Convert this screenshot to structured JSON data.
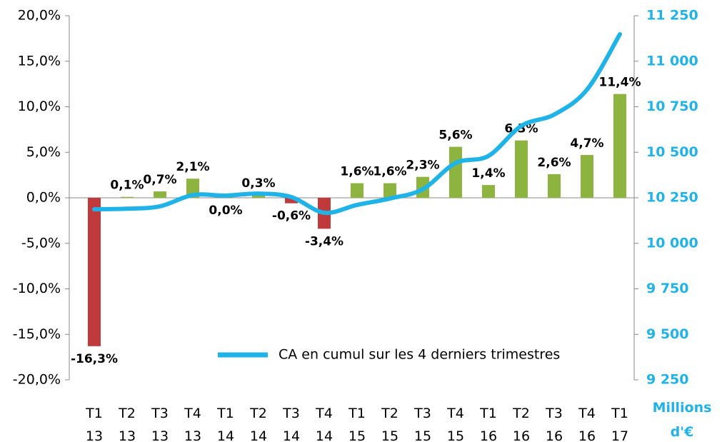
{
  "chart_data": {
    "type": "bar_line",
    "categories": [
      "T1 13",
      "T2 13",
      "T3 13",
      "T4 13",
      "T1 14",
      "T2 14",
      "T3 14",
      "T4 14",
      "T1 15",
      "T2 15",
      "T3 15",
      "T4 15",
      "T1 16",
      "T2 16",
      "T3 16",
      "T4 16",
      "T1 17"
    ],
    "series": [
      {
        "type": "bar",
        "positive_color": "#8db43e",
        "negative_color": "#c0393b",
        "values": [
          -16.3,
          0.1,
          0.7,
          2.1,
          0.0,
          0.3,
          -0.6,
          -3.4,
          1.6,
          1.6,
          2.3,
          5.6,
          1.4,
          6.3,
          2.6,
          4.7,
          11.4
        ],
        "value_labels": [
          "-16,3%",
          "0,1%",
          "0,7%",
          "2,1%",
          "0,0%",
          "0,3%",
          "-0,6%",
          "-3,4%",
          "1,6%",
          "1,6%",
          "2,3%",
          "5,6%",
          "1,4%",
          "6,3%",
          "2,6%",
          "4,7%",
          "11,4%"
        ]
      },
      {
        "type": "line",
        "name": "CA en cumul sur les 4 derniers trimestres",
        "color": "#1fb3e8",
        "axis": "y2",
        "values": [
          10187,
          10190,
          10203,
          10265,
          10262,
          10273,
          10254,
          10168,
          10211,
          10246,
          10297,
          10441,
          10480,
          10645,
          10707,
          10844,
          11148
        ]
      }
    ],
    "ylim": [
      -20,
      20
    ],
    "yticks": [
      {
        "value": -20,
        "label": "-20,0%"
      },
      {
        "value": -15,
        "label": "-15,0%"
      },
      {
        "value": -10,
        "label": "-10,0%"
      },
      {
        "value": -5,
        "label": "-5,0%"
      },
      {
        "value": 0,
        "label": "0,0%"
      },
      {
        "value": 5,
        "label": "5,0%"
      },
      {
        "value": 10,
        "label": "10,0%"
      },
      {
        "value": 15,
        "label": "15,0%"
      },
      {
        "value": 20,
        "label": "20,0%"
      }
    ],
    "y2lim": [
      9250,
      11250
    ],
    "y2ticks": [
      {
        "value": 9250,
        "label": "9 250"
      },
      {
        "value": 9500,
        "label": "9 500"
      },
      {
        "value": 9750,
        "label": "9 750"
      },
      {
        "value": 10000,
        "label": "10 000"
      },
      {
        "value": 10250,
        "label": "10 250"
      },
      {
        "value": 10500,
        "label": "10 500"
      },
      {
        "value": 10750,
        "label": "10 750"
      },
      {
        "value": 11000,
        "label": "11 000"
      },
      {
        "value": 11250,
        "label": "11 250"
      }
    ],
    "y2label": "Millions d'€"
  }
}
